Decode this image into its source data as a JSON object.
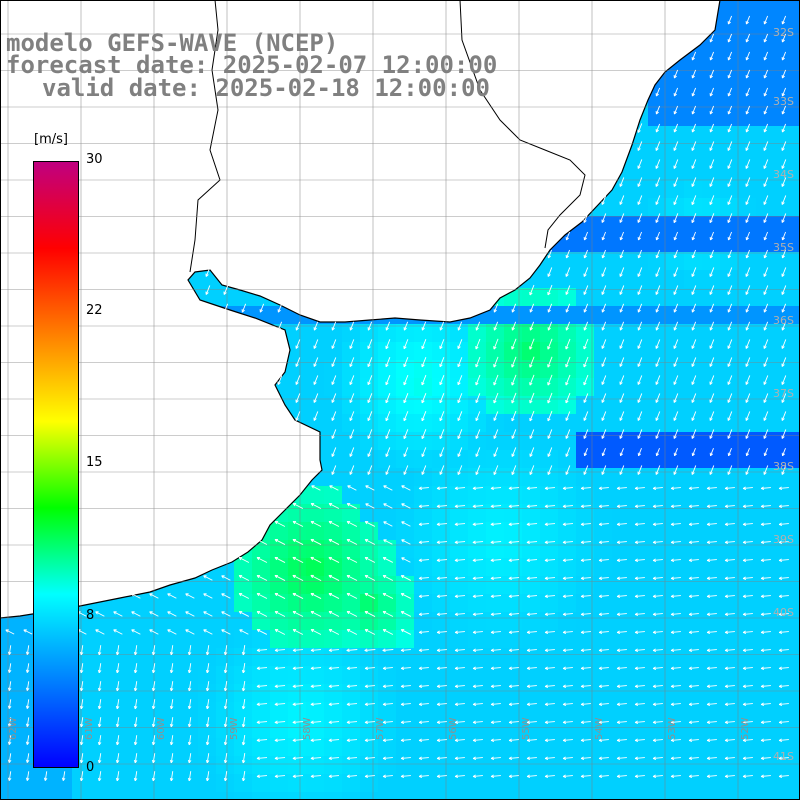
{
  "title": {
    "line1": "modelo GEFS-WAVE (NCEP)",
    "line2": "forecast date: 2025-02-07 12:00:00",
    "line3": "valid date: 2025-02-18 12:00:00"
  },
  "colorbar": {
    "unit": "[m/s]",
    "ticks": [
      "30",
      "22",
      "15",
      "8",
      "0"
    ],
    "tick_values": [
      30,
      22,
      15,
      8,
      0
    ],
    "colors": [
      "#0000ff",
      "#0080ff",
      "#00ffff",
      "#00ff00",
      "#ffff00",
      "#ff8000",
      "#ff0000",
      "#c00080"
    ]
  },
  "grid": {
    "lat_labels": [
      "32S",
      "33S",
      "34S",
      "35S",
      "36S",
      "37S",
      "38S",
      "39S",
      "40S",
      "41S"
    ],
    "lon_labels": [
      "62W",
      "61W",
      "60W",
      "59W",
      "58W",
      "57W",
      "56W",
      "55W",
      "54W",
      "53W",
      "52W",
      "51W"
    ]
  },
  "colors": {
    "land": "#ffffff",
    "coast": "#000000",
    "grid": "#808080",
    "arrow": "#ffffff"
  }
}
